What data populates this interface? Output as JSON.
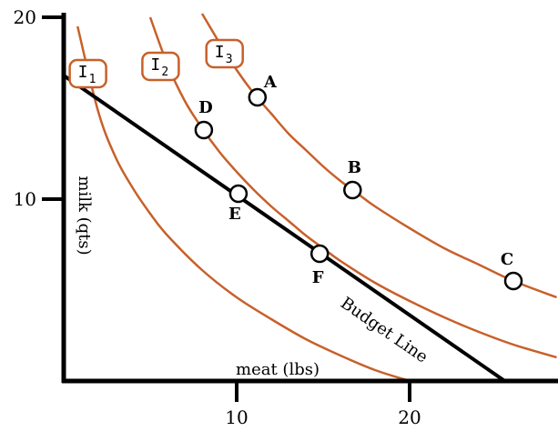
{
  "chart_data": {
    "type": "line",
    "title": "",
    "xlabel": "meat (lbs)",
    "ylabel": "milk (qts)",
    "xlim": [
      0,
      28.5
    ],
    "ylim": [
      0,
      21
    ],
    "x_ticks": [
      "10",
      "20"
    ],
    "y_ticks": [
      "20",
      "10"
    ],
    "grid": false,
    "curve_color": "#c8602a",
    "series": [
      {
        "name": "1",
        "tag_letter": "I",
        "tag_sub": "1",
        "tag_at": [
          1.4,
          16.9
        ],
        "x": [
          0.8,
          2,
          3,
          4,
          5,
          6,
          8,
          10,
          12,
          14,
          16,
          18,
          20
        ],
        "y": [
          19.5,
          14.8,
          12.3,
          10.6,
          9.2,
          8.0,
          6.1,
          4.6,
          3.4,
          2.3,
          1.4,
          0.6,
          0.0
        ]
      },
      {
        "name": "2",
        "tag_letter": "I",
        "tag_sub": "2",
        "tag_at": [
          5.6,
          17.3
        ],
        "x": [
          5.0,
          6,
          7,
          8,
          9,
          10,
          11,
          12,
          13,
          14,
          15,
          16,
          18,
          20,
          22,
          24,
          26,
          28.5
        ],
        "y": [
          20.0,
          17.4,
          15.4,
          13.9,
          12.6,
          11.5,
          10.5,
          9.6,
          8.8,
          8.0,
          7.3,
          6.6,
          5.4,
          4.4,
          3.5,
          2.7,
          2.0,
          1.3
        ]
      },
      {
        "name": "3",
        "tag_letter": "I",
        "tag_sub": "3",
        "tag_at": [
          9.3,
          18.0
        ],
        "x": [
          8.0,
          9,
          10,
          11,
          12,
          13,
          14,
          15,
          16,
          17,
          18,
          20,
          22,
          24,
          26,
          28.5
        ],
        "y": [
          20.2,
          18.6,
          17.1,
          15.8,
          14.7,
          13.6,
          12.7,
          11.8,
          11.0,
          10.3,
          9.6,
          8.4,
          7.3,
          6.4,
          5.5,
          4.6
        ]
      }
    ],
    "budget_line": {
      "name": "Budget Line",
      "x": [
        0,
        25.5
      ],
      "y": [
        16.8,
        0
      ]
    },
    "points": [
      {
        "label": "A",
        "x": 11.2,
        "y": 15.6
      },
      {
        "label": "B",
        "x": 16.7,
        "y": 10.5
      },
      {
        "label": "C",
        "x": 26.0,
        "y": 5.5
      },
      {
        "label": "D",
        "x": 8.1,
        "y": 13.8
      },
      {
        "label": "E",
        "x": 10.1,
        "y": 10.3
      },
      {
        "label": "F",
        "x": 14.8,
        "y": 7.0
      }
    ]
  }
}
